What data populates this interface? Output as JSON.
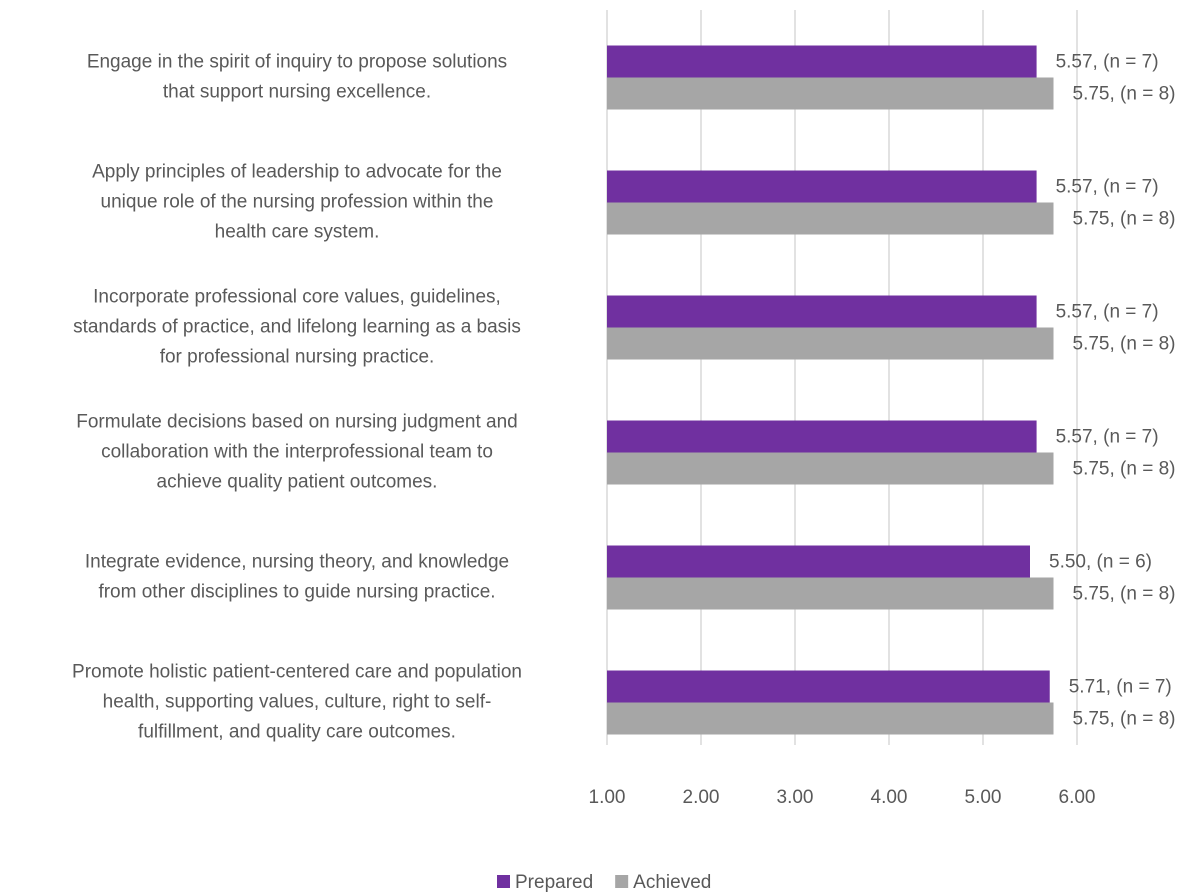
{
  "chart_data": {
    "type": "bar",
    "orientation": "horizontal",
    "categories": [
      [
        "Engage in the spirit of inquiry to propose solutions",
        "that support nursing excellence."
      ],
      [
        "Apply principles of leadership to advocate for the",
        "unique role of the nursing profession within the",
        "health care system."
      ],
      [
        "Incorporate professional core values, guidelines,",
        "standards of practice, and lifelong learning as a basis",
        "for professional nursing practice."
      ],
      [
        "Formulate decisions based on nursing judgment and",
        "collaboration with the interprofessional team to",
        "achieve quality patient outcomes."
      ],
      [
        "Integrate evidence, nursing theory, and knowledge",
        "from other disciplines to guide nursing practice."
      ],
      [
        "Promote holistic patient-centered care and population",
        "health, supporting values, culture, right to self-",
        "fulfillment, and quality care outcomes."
      ]
    ],
    "series": [
      {
        "name": "Prepared",
        "color": "#7030a0",
        "values": [
          5.57,
          5.57,
          5.57,
          5.57,
          5.5,
          5.71
        ],
        "value_labels": [
          "5.57, (n = 7)",
          "5.57, (n = 7)",
          "5.57, (n = 7)",
          "5.57, (n = 7)",
          "5.50, (n = 6)",
          "5.71, (n = 7)"
        ]
      },
      {
        "name": "Achieved",
        "color": "#a6a6a6",
        "values": [
          5.75,
          5.75,
          5.75,
          5.75,
          5.75,
          5.75
        ],
        "value_labels": [
          "5.75, (n = 8)",
          "5.75, (n = 8)",
          "5.75, (n = 8)",
          "5.75, (n = 8)",
          "5.75, (n = 8)",
          "5.75, (n = 8)"
        ]
      }
    ],
    "xlim": [
      1,
      6
    ],
    "xticks": [
      {
        "value": 1,
        "label": "1.00"
      },
      {
        "value": 2,
        "label": "2.00"
      },
      {
        "value": 3,
        "label": "3.00"
      },
      {
        "value": 4,
        "label": "4.00"
      },
      {
        "value": 5,
        "label": "5.00"
      },
      {
        "value": 6,
        "label": "6.00"
      }
    ],
    "grid": true,
    "legend": "bottom"
  }
}
